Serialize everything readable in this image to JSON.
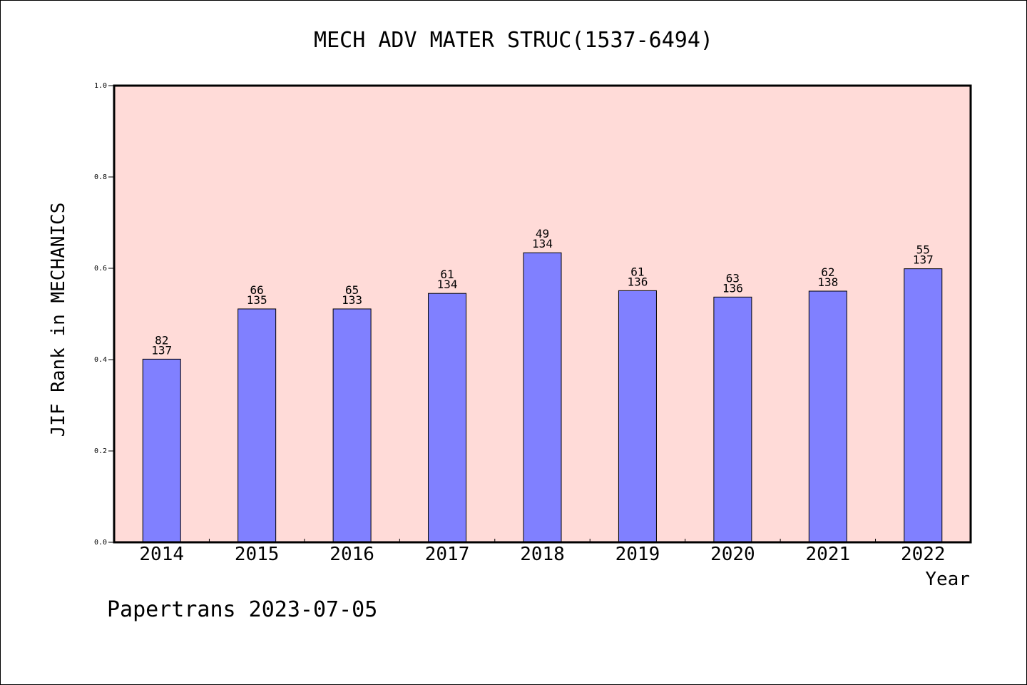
{
  "chart_data": {
    "type": "bar",
    "title": "MECH ADV MATER STRUC(1537-6494)",
    "xlabel": "Year",
    "ylabel": "JIF Rank in MECHANICS",
    "ylim": [
      0,
      1.0
    ],
    "yticks": [
      "0.0",
      "0.2",
      "0.4",
      "0.6",
      "0.8",
      "1.0"
    ],
    "categories": [
      "2014",
      "2015",
      "2016",
      "2017",
      "2018",
      "2019",
      "2020",
      "2021",
      "2022"
    ],
    "values": [
      0.401,
      0.511,
      0.511,
      0.545,
      0.634,
      0.551,
      0.537,
      0.55,
      0.599
    ],
    "labels_top": [
      "82",
      "66",
      "65",
      "61",
      "49",
      "61",
      "63",
      "62",
      "55"
    ],
    "labels_bottom": [
      "137",
      "135",
      "133",
      "134",
      "134",
      "136",
      "136",
      "138",
      "137"
    ],
    "grid": false,
    "colors": {
      "plot_background": "#ffdbd8",
      "bar_fill": "#8080ff",
      "bar_stroke": "#000000"
    }
  },
  "footer": {
    "text": "Papertrans 2023-07-05"
  }
}
